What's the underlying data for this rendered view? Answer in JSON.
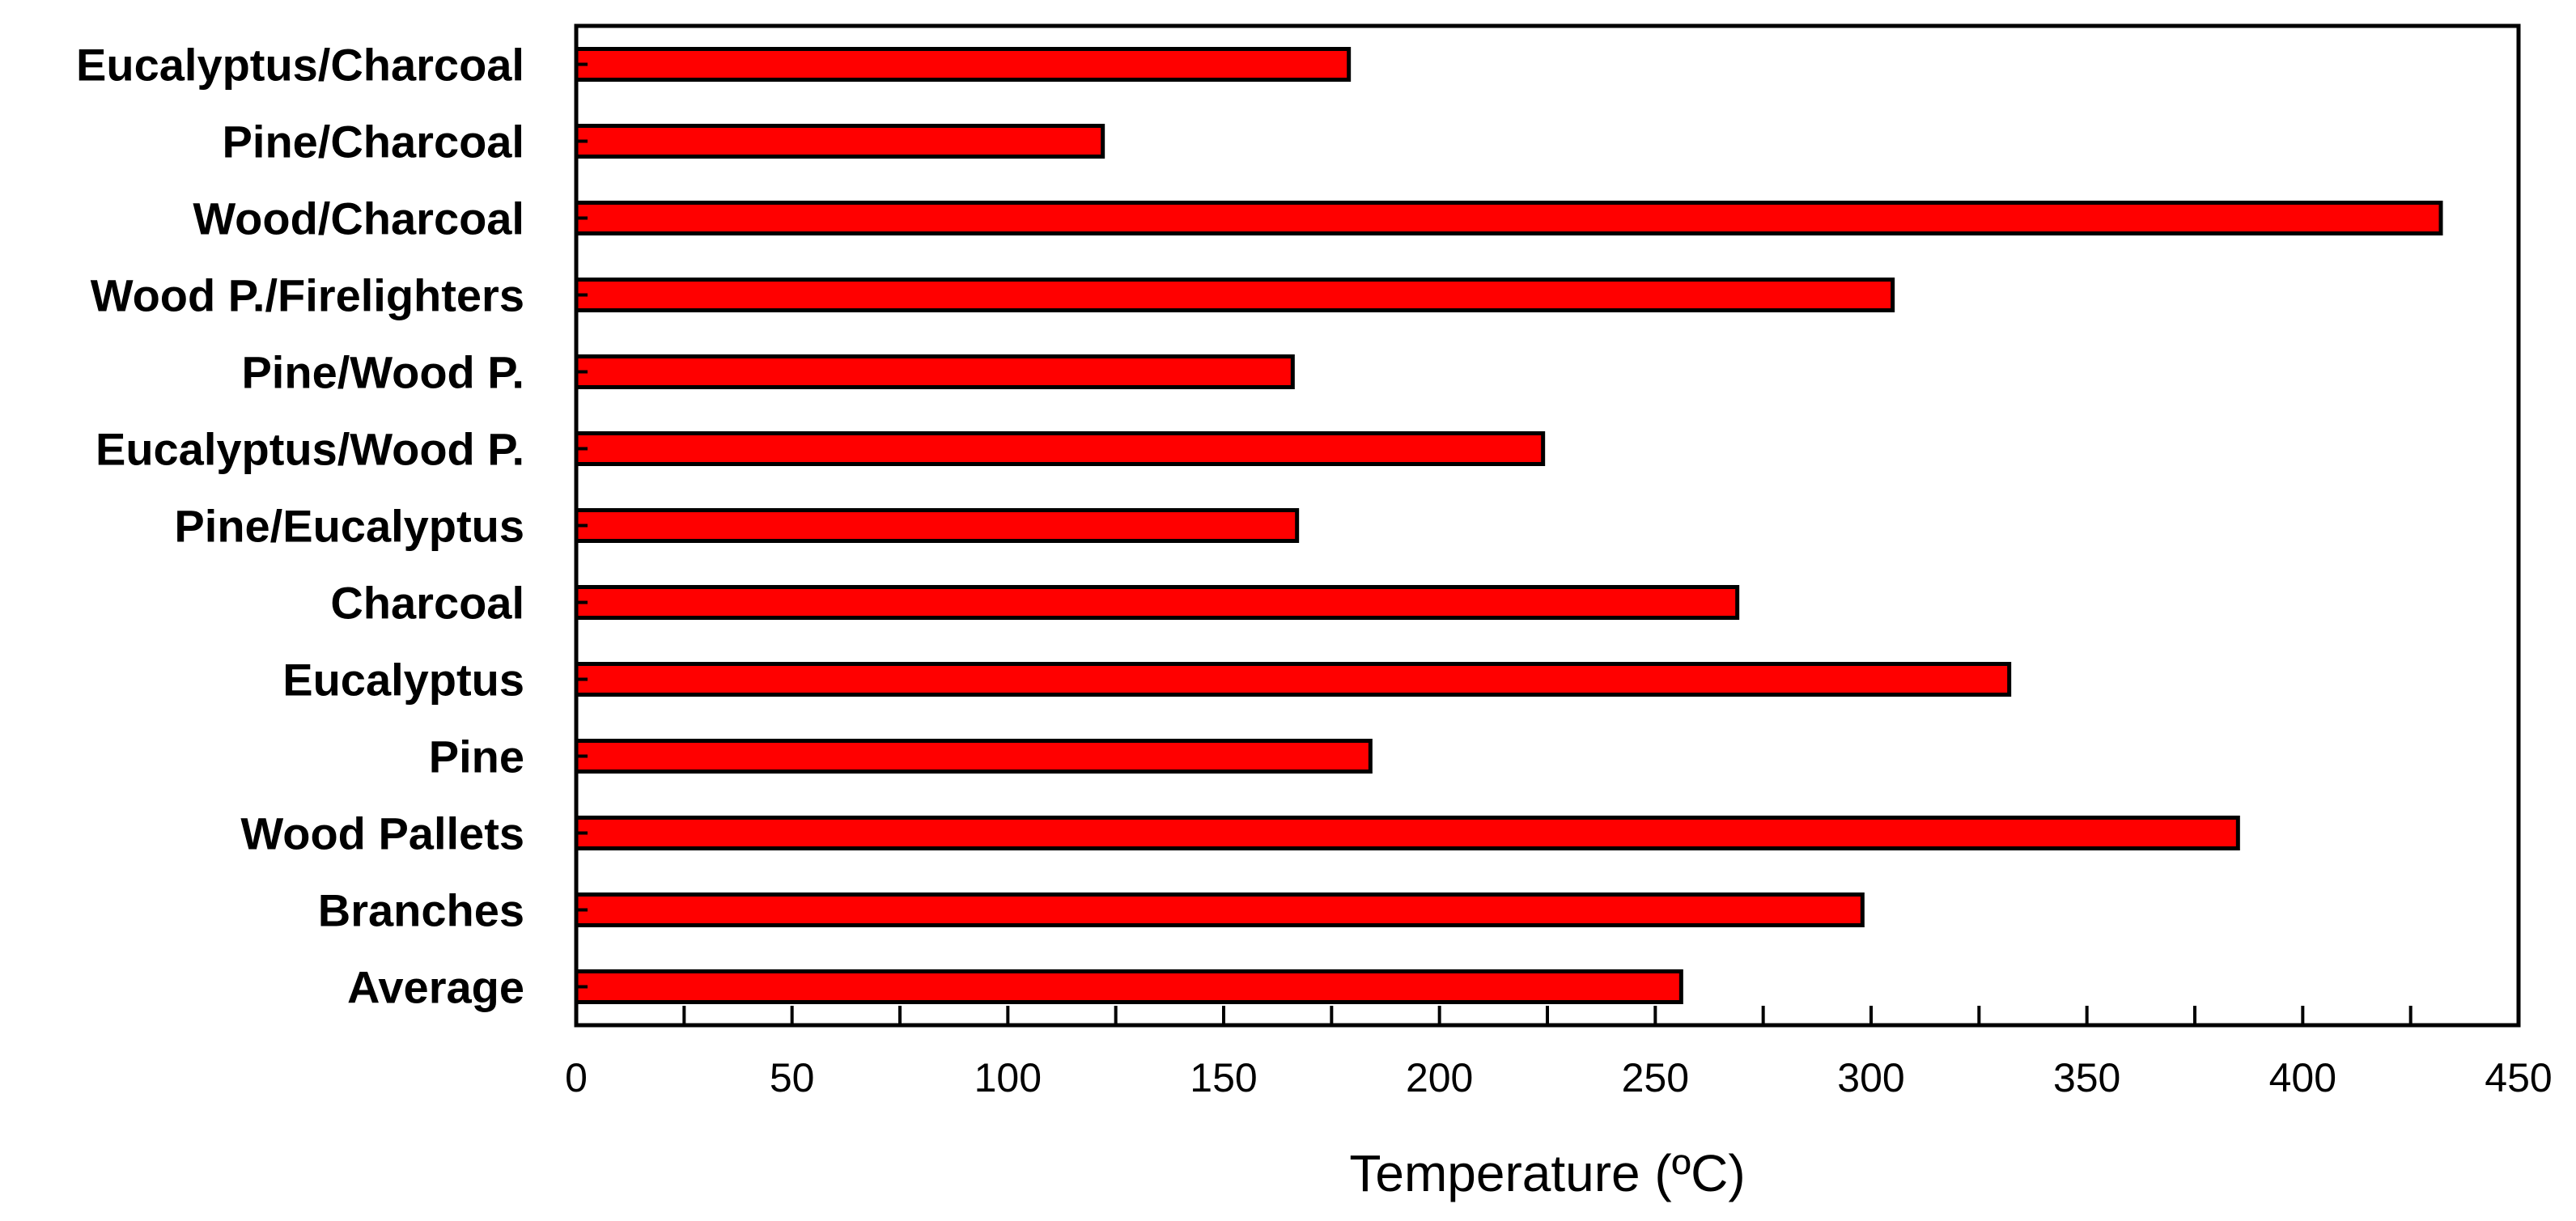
{
  "chart_data": {
    "type": "bar",
    "orientation": "horizontal",
    "title": "",
    "xlabel": "Temperature (ºC)",
    "ylabel": "",
    "xlim": [
      0,
      450
    ],
    "xticks": [
      0,
      50,
      100,
      150,
      200,
      250,
      300,
      350,
      400,
      450
    ],
    "grid": false,
    "categories": [
      "Eucalyptus/Charcoal",
      "Pine/Charcoal",
      "Wood/Charcoal",
      "Wood P./Firelighters",
      "Pine/Wood P.",
      "Eucalyptus/Wood P.",
      "Pine/Eucalyptus",
      "Charcoal",
      "Eucalyptus",
      "Pine",
      "Wood Pallets",
      "Branches",
      "Average"
    ],
    "values": [
      179,
      122,
      432,
      305,
      166,
      224,
      167,
      269,
      332,
      184,
      385,
      298,
      256
    ],
    "bar_color": "#ff0000",
    "bar_edge_color": "#000000"
  }
}
